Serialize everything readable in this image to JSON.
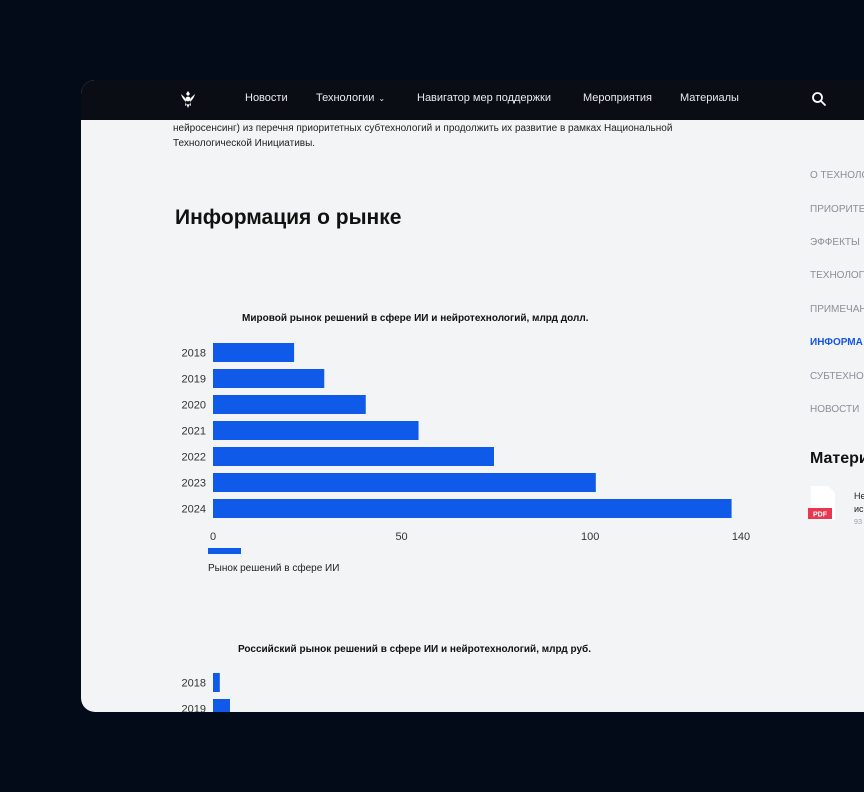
{
  "nav": {
    "items": [
      "Новости",
      "Технологии",
      "Навигатор мер поддержки",
      "Мероприятия",
      "Материалы"
    ],
    "technologies_chevron": "›"
  },
  "intro": {
    "line1": "нейросенсинг) из перечня приоритетных субтехнологий и продолжить их развитие в рамках Национальной",
    "line2": "Технологической Инициативы."
  },
  "section_title": "Информация о рынке",
  "toc": {
    "items": [
      "О ТЕХНОЛО",
      "ПРИОРИТЕ",
      "ЭФФЕКТЫ",
      "ТЕХНОЛОГ",
      "ПРИМЕЧАН",
      "ИНФОРМА",
      "СУБТЕХНО",
      "НОВОСТИ"
    ],
    "active_index": 5
  },
  "materials": {
    "title": "Матери",
    "doc_badge": "PDF",
    "doc_line1": "Не",
    "doc_line2": "ис",
    "doc_meta": "9З"
  },
  "colors": {
    "accent": "#1555e6",
    "bar": "#0f5ae8",
    "nav_bg": "#0a0d14",
    "badge": "#e8384f"
  },
  "chart_data": [
    {
      "type": "bar",
      "orientation": "horizontal",
      "title": "Мировой рынок решений в сфере ИИ и нейротехнологий, млрд долл.",
      "categories": [
        "2018",
        "2019",
        "2020",
        "2021",
        "2022",
        "2023",
        "2024"
      ],
      "series": [
        {
          "name": "Рынок решений в сфере ИИ",
          "values": [
            21.5,
            29.5,
            40.5,
            54.5,
            74.5,
            101.5,
            137.5
          ]
        }
      ],
      "xticks": [
        "0",
        "50",
        "100",
        "140"
      ],
      "xlim": [
        0,
        140
      ],
      "legend": "bottom-left",
      "grid": false
    },
    {
      "type": "bar",
      "orientation": "horizontal",
      "title": "Российский рынок решений в сфере ИИ и нейротехнологий, млрд руб.",
      "categories": [
        "2018",
        "2019"
      ],
      "series": [
        {
          "values": [
            2,
            5
          ]
        }
      ]
    }
  ]
}
